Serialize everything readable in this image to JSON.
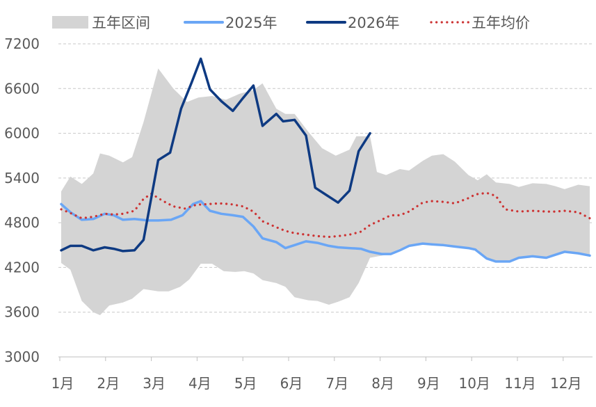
{
  "chart_data": {
    "type": "line",
    "title": "",
    "xlabel": "",
    "ylabel": "",
    "ylim": [
      3000,
      7200
    ],
    "y_ticks": [
      "3000",
      "3600",
      "4200",
      "4800",
      "5400",
      "6000",
      "6600",
      "7200"
    ],
    "categories": [
      "1月",
      "2月",
      "3月",
      "4月",
      "5月",
      "6月",
      "7月",
      "8月",
      "9月",
      "10月",
      "11月",
      "12月"
    ],
    "x_range": [
      1,
      12.55
    ],
    "grid": "horizontal dashed",
    "legend_placement": "top",
    "legend": [
      {
        "key": "band",
        "label": "五年区间",
        "style": "area",
        "color": "#d4d4d4"
      },
      {
        "key": "s2025",
        "label": "2025年",
        "style": "line",
        "color": "#6aa6f5"
      },
      {
        "key": "s2026",
        "label": "2026年",
        "style": "line",
        "color": "#0e3a82"
      },
      {
        "key": "avg",
        "label": "五年均价",
        "style": "dotted",
        "color": "#cc3333"
      }
    ],
    "band": {
      "name": "五年区间",
      "upper": [
        [
          1,
          5220
        ],
        [
          1.2,
          5420
        ],
        [
          1.45,
          5320
        ],
        [
          1.7,
          5460
        ],
        [
          1.85,
          5730
        ],
        [
          2.05,
          5700
        ],
        [
          2.35,
          5610
        ],
        [
          2.55,
          5680
        ],
        [
          2.8,
          6150
        ],
        [
          3.12,
          6870
        ],
        [
          3.45,
          6600
        ],
        [
          3.75,
          6420
        ],
        [
          4.0,
          6480
        ],
        [
          4.3,
          6500
        ],
        [
          4.6,
          6450
        ],
        [
          4.9,
          6530
        ],
        [
          5.2,
          6580
        ],
        [
          5.4,
          6670
        ],
        [
          5.7,
          6330
        ],
        [
          5.9,
          6260
        ],
        [
          6.1,
          6260
        ],
        [
          6.4,
          6020
        ],
        [
          6.7,
          5800
        ],
        [
          7.0,
          5700
        ],
        [
          7.3,
          5780
        ],
        [
          7.45,
          5960
        ],
        [
          7.75,
          5960
        ],
        [
          7.9,
          5480
        ],
        [
          8.1,
          5440
        ],
        [
          8.4,
          5520
        ],
        [
          8.6,
          5500
        ],
        [
          8.9,
          5630
        ],
        [
          9.1,
          5700
        ],
        [
          9.35,
          5720
        ],
        [
          9.6,
          5620
        ],
        [
          9.9,
          5440
        ],
        [
          10.1,
          5370
        ],
        [
          10.3,
          5450
        ],
        [
          10.5,
          5340
        ],
        [
          10.8,
          5320
        ],
        [
          11.0,
          5280
        ],
        [
          11.3,
          5330
        ],
        [
          11.6,
          5320
        ],
        [
          11.8,
          5290
        ],
        [
          12.0,
          5250
        ],
        [
          12.3,
          5310
        ],
        [
          12.55,
          5290
        ]
      ],
      "lower": [
        [
          1,
          4260
        ],
        [
          1.2,
          4170
        ],
        [
          1.45,
          3750
        ],
        [
          1.7,
          3600
        ],
        [
          1.85,
          3560
        ],
        [
          2.05,
          3690
        ],
        [
          2.35,
          3730
        ],
        [
          2.55,
          3780
        ],
        [
          2.8,
          3910
        ],
        [
          3.12,
          3880
        ],
        [
          3.35,
          3880
        ],
        [
          3.6,
          3940
        ],
        [
          3.8,
          4040
        ],
        [
          4.05,
          4250
        ],
        [
          4.3,
          4250
        ],
        [
          4.55,
          4150
        ],
        [
          4.8,
          4140
        ],
        [
          5.0,
          4150
        ],
        [
          5.2,
          4120
        ],
        [
          5.4,
          4030
        ],
        [
          5.7,
          3990
        ],
        [
          5.9,
          3940
        ],
        [
          6.1,
          3800
        ],
        [
          6.4,
          3760
        ],
        [
          6.6,
          3750
        ],
        [
          6.85,
          3700
        ],
        [
          7.05,
          3740
        ],
        [
          7.3,
          3800
        ],
        [
          7.5,
          3990
        ],
        [
          7.75,
          4330
        ],
        [
          8.1,
          4370
        ],
        [
          8.4,
          4450
        ],
        [
          8.6,
          4490
        ],
        [
          8.9,
          4510
        ],
        [
          9.1,
          4510
        ],
        [
          9.35,
          4500
        ],
        [
          9.6,
          4480
        ],
        [
          9.9,
          4450
        ],
        [
          10.1,
          4440
        ],
        [
          10.3,
          4320
        ],
        [
          10.5,
          4280
        ],
        [
          10.8,
          4280
        ],
        [
          11.0,
          4330
        ],
        [
          11.3,
          4350
        ],
        [
          11.6,
          4330
        ],
        [
          11.8,
          4370
        ],
        [
          12.0,
          4410
        ],
        [
          12.3,
          4380
        ],
        [
          12.55,
          4360
        ]
      ]
    },
    "series": [
      {
        "name": "2025年",
        "key": "s2025",
        "color": "#6aa6f5",
        "points": [
          [
            1,
            5050
          ],
          [
            1.2,
            4940
          ],
          [
            1.45,
            4840
          ],
          [
            1.7,
            4850
          ],
          [
            1.95,
            4920
          ],
          [
            2.15,
            4900
          ],
          [
            2.35,
            4840
          ],
          [
            2.6,
            4850
          ],
          [
            2.9,
            4830
          ],
          [
            3.12,
            4830
          ],
          [
            3.4,
            4840
          ],
          [
            3.65,
            4900
          ],
          [
            3.88,
            5050
          ],
          [
            4.05,
            5090
          ],
          [
            4.25,
            4960
          ],
          [
            4.5,
            4920
          ],
          [
            4.75,
            4900
          ],
          [
            4.97,
            4880
          ],
          [
            5.2,
            4750
          ],
          [
            5.4,
            4590
          ],
          [
            5.7,
            4540
          ],
          [
            5.9,
            4460
          ],
          [
            6.1,
            4500
          ],
          [
            6.35,
            4550
          ],
          [
            6.6,
            4530
          ],
          [
            6.85,
            4490
          ],
          [
            7.05,
            4470
          ],
          [
            7.3,
            4460
          ],
          [
            7.55,
            4450
          ],
          [
            7.75,
            4410
          ],
          [
            8.0,
            4380
          ],
          [
            8.2,
            4380
          ],
          [
            8.4,
            4430
          ],
          [
            8.6,
            4490
          ],
          [
            8.9,
            4520
          ],
          [
            9.1,
            4510
          ],
          [
            9.35,
            4500
          ],
          [
            9.6,
            4480
          ],
          [
            9.9,
            4460
          ],
          [
            10.05,
            4440
          ],
          [
            10.3,
            4320
          ],
          [
            10.5,
            4280
          ],
          [
            10.8,
            4280
          ],
          [
            11.0,
            4330
          ],
          [
            11.3,
            4350
          ],
          [
            11.6,
            4330
          ],
          [
            11.8,
            4370
          ],
          [
            12.0,
            4410
          ],
          [
            12.3,
            4390
          ],
          [
            12.55,
            4360
          ]
        ]
      },
      {
        "name": "2026年",
        "key": "s2026",
        "color": "#0e3a82",
        "points": [
          [
            1,
            4430
          ],
          [
            1.2,
            4490
          ],
          [
            1.45,
            4490
          ],
          [
            1.7,
            4430
          ],
          [
            1.95,
            4470
          ],
          [
            2.15,
            4450
          ],
          [
            2.35,
            4420
          ],
          [
            2.6,
            4430
          ],
          [
            2.8,
            4570
          ],
          [
            3.12,
            5640
          ],
          [
            3.38,
            5740
          ],
          [
            3.62,
            6330
          ],
          [
            3.85,
            6680
          ],
          [
            4.05,
            7000
          ],
          [
            4.25,
            6590
          ],
          [
            4.5,
            6430
          ],
          [
            4.75,
            6300
          ],
          [
            4.97,
            6470
          ],
          [
            5.2,
            6640
          ],
          [
            5.4,
            6100
          ],
          [
            5.7,
            6260
          ],
          [
            5.85,
            6160
          ],
          [
            6.1,
            6180
          ],
          [
            6.35,
            5970
          ],
          [
            6.55,
            5270
          ],
          [
            6.8,
            5170
          ],
          [
            7.05,
            5070
          ],
          [
            7.3,
            5230
          ],
          [
            7.5,
            5760
          ],
          [
            7.75,
            6000
          ]
        ]
      },
      {
        "name": "五年均价",
        "key": "avg",
        "color": "#cc3333",
        "points": [
          [
            1,
            4980
          ],
          [
            1.2,
            4930
          ],
          [
            1.45,
            4860
          ],
          [
            1.7,
            4880
          ],
          [
            1.95,
            4920
          ],
          [
            2.15,
            4910
          ],
          [
            2.35,
            4920
          ],
          [
            2.6,
            4960
          ],
          [
            2.8,
            5120
          ],
          [
            2.97,
            5190
          ],
          [
            3.2,
            5100
          ],
          [
            3.45,
            5020
          ],
          [
            3.7,
            4990
          ],
          [
            3.95,
            5040
          ],
          [
            4.2,
            5050
          ],
          [
            4.45,
            5060
          ],
          [
            4.7,
            5050
          ],
          [
            4.97,
            5020
          ],
          [
            5.2,
            4950
          ],
          [
            5.4,
            4820
          ],
          [
            5.7,
            4740
          ],
          [
            5.9,
            4690
          ],
          [
            6.1,
            4660
          ],
          [
            6.35,
            4640
          ],
          [
            6.6,
            4620
          ],
          [
            6.85,
            4610
          ],
          [
            7.05,
            4620
          ],
          [
            7.3,
            4640
          ],
          [
            7.55,
            4680
          ],
          [
            7.75,
            4770
          ],
          [
            8.0,
            4840
          ],
          [
            8.2,
            4900
          ],
          [
            8.4,
            4900
          ],
          [
            8.6,
            4950
          ],
          [
            8.9,
            5070
          ],
          [
            9.1,
            5090
          ],
          [
            9.35,
            5080
          ],
          [
            9.6,
            5060
          ],
          [
            9.9,
            5130
          ],
          [
            10.05,
            5180
          ],
          [
            10.3,
            5200
          ],
          [
            10.5,
            5160
          ],
          [
            10.7,
            4980
          ],
          [
            10.9,
            4960
          ],
          [
            11.0,
            4950
          ],
          [
            11.3,
            4960
          ],
          [
            11.6,
            4950
          ],
          [
            11.8,
            4950
          ],
          [
            12.0,
            4960
          ],
          [
            12.3,
            4940
          ],
          [
            12.55,
            4860
          ]
        ]
      }
    ]
  }
}
